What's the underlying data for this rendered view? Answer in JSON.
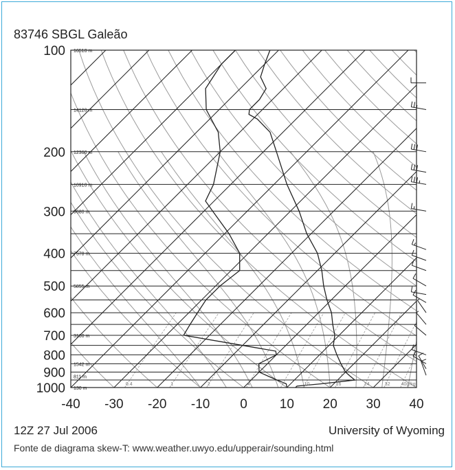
{
  "chart_data": {
    "type": "line",
    "chart_kind": "skew-T log-P diagram",
    "title": "83746 SBGL Galeão",
    "time_label": "12Z 27 Jul 2006",
    "source_label": "University of Wyoming",
    "xlim": [
      -40,
      40
    ],
    "x_ticks": [
      -40,
      -30,
      -20,
      -10,
      0,
      10,
      20,
      30,
      40
    ],
    "y_scale": "log",
    "ylim": [
      1000,
      100
    ],
    "y_ticks": [
      100,
      200,
      300,
      400,
      500,
      600,
      700,
      800,
      900,
      1000
    ],
    "height_labels": [
      {
        "p": 1000,
        "label": "130 m"
      },
      {
        "p": 925,
        "label": "811 m"
      },
      {
        "p": 850,
        "label": "1542 m"
      },
      {
        "p": 700,
        "label": "3160 m"
      },
      {
        "p": 500,
        "label": "5855 m"
      },
      {
        "p": 400,
        "label": "7578 m"
      },
      {
        "p": 300,
        "label": "9680 m"
      },
      {
        "p": 250,
        "label": "10910 m"
      },
      {
        "p": 200,
        "label": "12360 m"
      },
      {
        "p": 150,
        "label": "14120 m"
      },
      {
        "p": 100,
        "label": "16510 m"
      }
    ],
    "mixing_ratio_labels": [
      "0.4",
      "1",
      "2",
      "4",
      "7",
      "10",
      "16",
      "24",
      "32",
      "40g/kg"
    ],
    "series": [
      {
        "role": "temperature",
        "points": [
          {
            "p": 1000,
            "t": 12
          },
          {
            "p": 990,
            "t": 12
          },
          {
            "p": 975,
            "t": 17
          },
          {
            "p": 950,
            "t": 24
          },
          {
            "p": 925,
            "t": 22
          },
          {
            "p": 900,
            "t": 20
          },
          {
            "p": 850,
            "t": 17
          },
          {
            "p": 800,
            "t": 14
          },
          {
            "p": 750,
            "t": 11
          },
          {
            "p": 700,
            "t": 9
          },
          {
            "p": 650,
            "t": 6
          },
          {
            "p": 600,
            "t": 3
          },
          {
            "p": 550,
            "t": -1
          },
          {
            "p": 500,
            "t": -5
          },
          {
            "p": 450,
            "t": -9
          },
          {
            "p": 400,
            "t": -14
          },
          {
            "p": 350,
            "t": -21
          },
          {
            "p": 300,
            "t": -28
          },
          {
            "p": 250,
            "t": -37
          },
          {
            "p": 200,
            "t": -47
          },
          {
            "p": 175,
            "t": -53
          },
          {
            "p": 160,
            "t": -59
          },
          {
            "p": 155,
            "t": -62
          },
          {
            "p": 150,
            "t": -63
          },
          {
            "p": 140,
            "t": -63
          },
          {
            "p": 130,
            "t": -64
          },
          {
            "p": 120,
            "t": -68
          },
          {
            "p": 110,
            "t": -70
          },
          {
            "p": 100,
            "t": -72
          }
        ]
      },
      {
        "role": "dewpoint",
        "points": [
          {
            "p": 1000,
            "t": 10
          },
          {
            "p": 975,
            "t": 9
          },
          {
            "p": 950,
            "t": 6
          },
          {
            "p": 925,
            "t": 3
          },
          {
            "p": 900,
            "t": 0
          },
          {
            "p": 850,
            "t": -2
          },
          {
            "p": 800,
            "t": 0
          },
          {
            "p": 780,
            "t": -1
          },
          {
            "p": 750,
            "t": -10
          },
          {
            "p": 700,
            "t": -26
          },
          {
            "p": 650,
            "t": -27
          },
          {
            "p": 600,
            "t": -28
          },
          {
            "p": 550,
            "t": -29
          },
          {
            "p": 500,
            "t": -29
          },
          {
            "p": 450,
            "t": -28
          },
          {
            "p": 400,
            "t": -32
          },
          {
            "p": 350,
            "t": -39
          },
          {
            "p": 300,
            "t": -48
          },
          {
            "p": 280,
            "t": -52
          },
          {
            "p": 250,
            "t": -54
          },
          {
            "p": 200,
            "t": -60
          },
          {
            "p": 175,
            "t": -65
          },
          {
            "p": 150,
            "t": -73
          },
          {
            "p": 130,
            "t": -78
          },
          {
            "p": 110,
            "t": -80
          },
          {
            "p": 100,
            "t": -80
          }
        ]
      }
    ],
    "wind_barbs": [
      {
        "p": 920,
        "dir": 340,
        "spd": 10
      },
      {
        "p": 880,
        "dir": 330,
        "spd": 10
      },
      {
        "p": 850,
        "dir": 300,
        "spd": 10
      },
      {
        "p": 800,
        "dir": 290,
        "spd": 10
      },
      {
        "p": 700,
        "dir": 310,
        "spd": 5
      },
      {
        "p": 650,
        "dir": 320,
        "spd": 5
      },
      {
        "p": 600,
        "dir": 325,
        "spd": 5
      },
      {
        "p": 560,
        "dir": 300,
        "spd": 10
      },
      {
        "p": 530,
        "dir": 280,
        "spd": 10
      },
      {
        "p": 500,
        "dir": 300,
        "spd": 10
      },
      {
        "p": 450,
        "dir": 290,
        "spd": 10
      },
      {
        "p": 420,
        "dir": 290,
        "spd": 10
      },
      {
        "p": 390,
        "dir": 290,
        "spd": 15
      },
      {
        "p": 300,
        "dir": 280,
        "spd": 15
      },
      {
        "p": 250,
        "dir": 280,
        "spd": 35
      },
      {
        "p": 230,
        "dir": 280,
        "spd": 30
      },
      {
        "p": 200,
        "dir": 280,
        "spd": 30
      },
      {
        "p": 150,
        "dir": 280,
        "spd": 25
      },
      {
        "p": 125,
        "dir": 270,
        "spd": 10
      }
    ],
    "caption": "Fonte de diagrama skew-T: www.weather.uwyo.edu/upperair/sounding.html",
    "colors": {
      "frame": "#3aa8d8",
      "grid": "#222222",
      "guide": "#9a9a9a",
      "trace": "#222222"
    }
  }
}
